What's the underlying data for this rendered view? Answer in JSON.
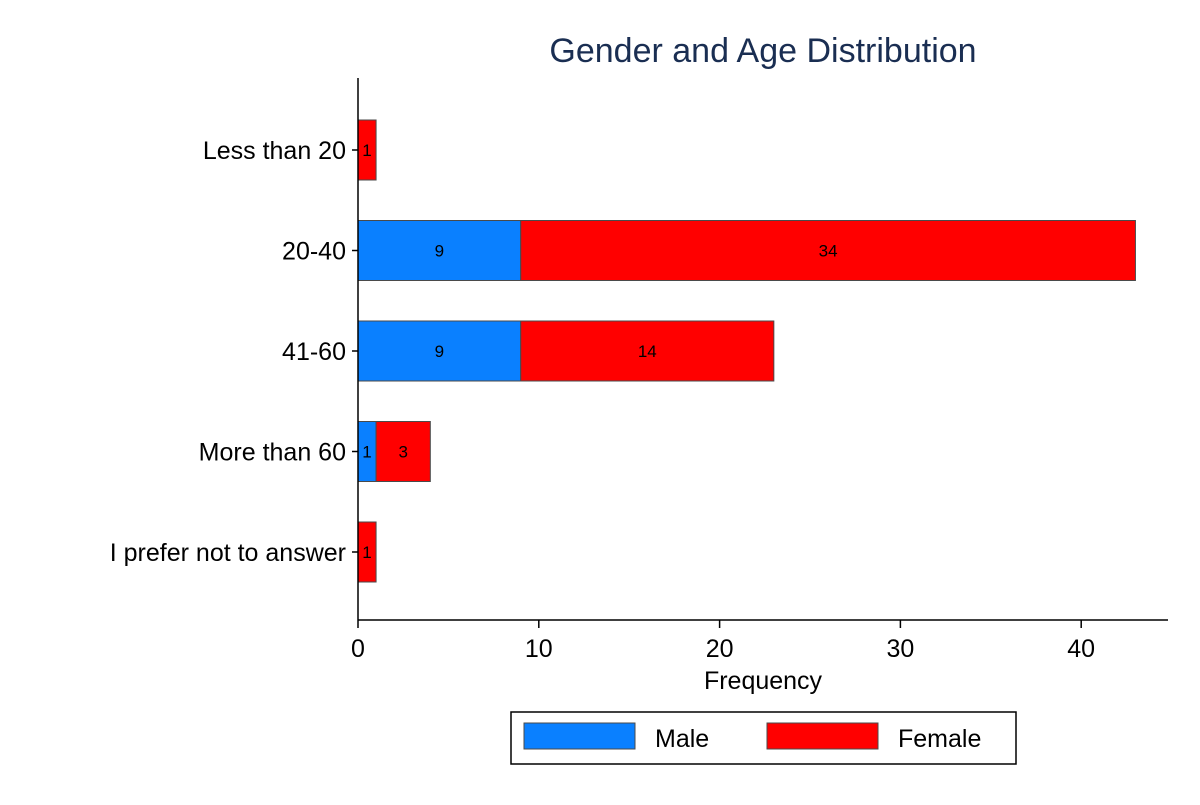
{
  "chart_data": {
    "type": "bar",
    "orientation": "horizontal",
    "stacked": true,
    "title": "Gender and Age Distribution",
    "xlabel": "Frequency",
    "ylabel": "",
    "categories": [
      "Less than 20",
      "20-40",
      "41-60",
      "More than 60",
      "I prefer not to answer"
    ],
    "series": [
      {
        "name": "Male",
        "values": [
          0,
          9,
          9,
          1,
          0
        ]
      },
      {
        "name": "Female",
        "values": [
          1,
          34,
          14,
          3,
          1
        ]
      }
    ],
    "xlim": [
      0,
      45
    ],
    "xticks": [
      0,
      10,
      20,
      30,
      40
    ],
    "grid": false,
    "legend_position": "bottom"
  },
  "colors": {
    "title": "#1a2e52",
    "male": "#0a80ff",
    "female": "#ff0000",
    "bar_outline": "#4a4a4a",
    "axis": "#000000"
  }
}
